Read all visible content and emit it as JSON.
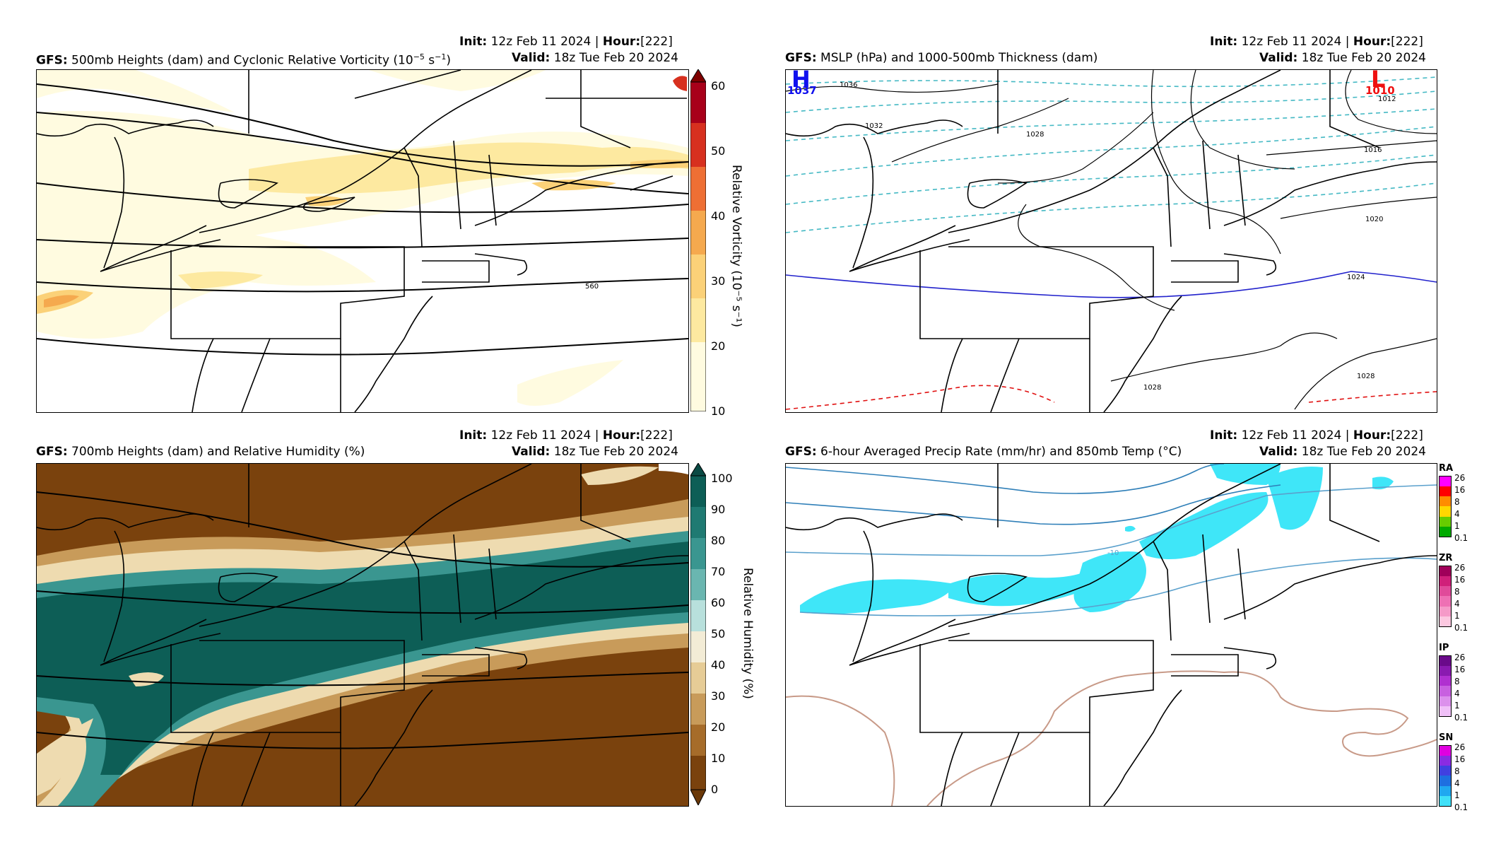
{
  "panels": {
    "p1": {
      "model": "GFS",
      "title_pre": "500mb Heights (dam) and Cyclonic Relative Vorticity (10",
      "title_sup1": "−5",
      "title_mid": " s",
      "title_sup2": "−1",
      "title_post": ")",
      "init_label": "Init",
      "init_value": "12z Feb 11 2024",
      "hour_label": "Hour",
      "hour_value": "[222]",
      "valid_label": "Valid",
      "valid_value": "18z Tue Feb 20 2024",
      "colorbar_title": "Relative Vorticity (10⁻⁵ s⁻¹)",
      "colorbar_ticks": [
        "60",
        "50",
        "40",
        "30",
        "20",
        "10"
      ],
      "contour_label": "560"
    },
    "p2": {
      "model": "GFS",
      "title": "MSLP (hPa) and 1000-500mb Thickness (dam)",
      "init_label": "Init",
      "init_value": "12z Feb 11 2024",
      "hour_label": "Hour",
      "hour_value": "[222]",
      "valid_label": "Valid",
      "valid_value": "18z Tue Feb 20 2024",
      "high_letter": "H",
      "high_value": "1037",
      "low_letter": "L",
      "low_value": "1010",
      "contour_labels": [
        "1036",
        "1032",
        "1028",
        "1012",
        "1016",
        "1020",
        "1024",
        "1028",
        "1028"
      ]
    },
    "p3": {
      "model": "GFS",
      "title": "700mb Heights (dam) and Relative Humidity (%)",
      "init_label": "Init",
      "init_value": "12z Feb 11 2024",
      "hour_label": "Hour",
      "hour_value": "[222]",
      "valid_label": "Valid",
      "valid_value": "18z Tue Feb 20 2024",
      "colorbar_title": "Relative Humidity (%)",
      "colorbar_ticks": [
        "100",
        "90",
        "80",
        "70",
        "60",
        "50",
        "40",
        "30",
        "20",
        "10",
        "0"
      ]
    },
    "p4": {
      "model": "GFS",
      "title": "6-hour Averaged Precip Rate (mm/hr) and 850mb Temp (°C)",
      "init_label": "Init",
      "init_value": "12z Feb 11 2024",
      "hour_label": "Hour",
      "hour_value": "[222]",
      "valid_label": "Valid",
      "valid_value": "18z Tue Feb 20 2024",
      "contour_label": "-10",
      "ptypes": [
        {
          "name": "RA",
          "ticks": [
            "26",
            "16",
            "8",
            "4",
            "1",
            "0.1"
          ],
          "colors": [
            "#ff00ff",
            "#ff0000",
            "#ff8c00",
            "#ffd700",
            "#66cc00",
            "#00aa00"
          ]
        },
        {
          "name": "ZR",
          "ticks": [
            "26",
            "16",
            "8",
            "4",
            "1",
            "0.1"
          ],
          "colors": [
            "#a0005a",
            "#d0207a",
            "#e04a9a",
            "#ee70b4",
            "#f59ac8",
            "#fcc8e0"
          ]
        },
        {
          "name": "IP",
          "ticks": [
            "26",
            "16",
            "8",
            "4",
            "1",
            "0.1"
          ],
          "colors": [
            "#6a0a8a",
            "#8a1ab0",
            "#b030d0",
            "#c860e0",
            "#dc90ec",
            "#f0c0f8"
          ]
        },
        {
          "name": "SN",
          "ticks": [
            "26",
            "16",
            "8",
            "4",
            "1",
            "0.1"
          ],
          "colors": [
            "#e000e0",
            "#8a2be2",
            "#4040e0",
            "#1e6fe0",
            "#20a8f0",
            "#40e0f8"
          ]
        }
      ]
    }
  },
  "colors": {
    "vort": [
      "#fffbe0",
      "#fde9a0",
      "#fbd178",
      "#f5a94e",
      "#ee6f34",
      "#d7301f",
      "#a8001a",
      "#7f0000"
    ],
    "rh_dry": "#7a420d",
    "rh_mid": "#c89b5a",
    "rh_wet": "#0d5e56",
    "thickness_cold": "#45b9c4",
    "thickness_540": "#2222cc",
    "thickness_warm": "#e01010",
    "temp_cold": "#2f7fb8",
    "temp_warm": "#c89a88",
    "snow": "#3fe6f8",
    "high": "#1010ee",
    "low": "#ee1010"
  }
}
